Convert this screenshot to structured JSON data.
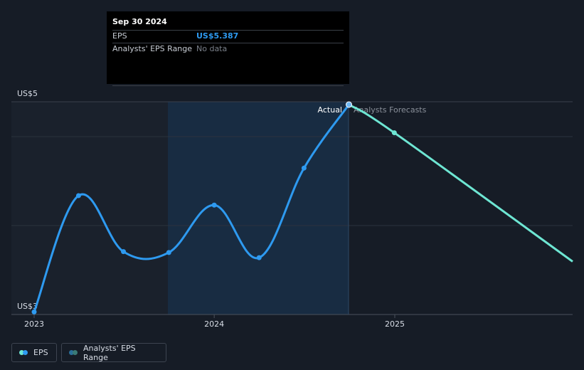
{
  "tooltip": {
    "date": "Sep 30 2024",
    "rows": [
      {
        "label": "EPS",
        "value": "US$5.387"
      },
      {
        "label": "Analysts' EPS Range",
        "value": "No data"
      }
    ]
  },
  "legend": {
    "eps_label": "EPS",
    "range_label": "Analysts' EPS Range"
  },
  "colors": {
    "actual": "#2e9af0",
    "forecast": "#6ee6d3",
    "range_dot_a": "#2a6f9a",
    "range_dot_b": "#3aa39a",
    "background": "#161c26",
    "highlight": "#182c42"
  },
  "chart_data": {
    "type": "line",
    "y_top_label": "US$5",
    "y_bottom_label": "US$3",
    "ylim": [
      2.95,
      5.42
    ],
    "x_ticks": [
      "2023",
      "2024",
      "2025"
    ],
    "section_labels": {
      "actual": "Actual",
      "forecast": "Analysts Forecasts"
    },
    "series": [
      {
        "name": "Actual",
        "points": [
          {
            "x": "2023-01-01",
            "y": 2.98
          },
          {
            "x": "2023-04-01",
            "y": 4.33
          },
          {
            "x": "2023-07-01",
            "y": 3.68
          },
          {
            "x": "2023-10-01",
            "y": 3.67
          },
          {
            "x": "2024-01-01",
            "y": 4.22
          },
          {
            "x": "2024-04-01",
            "y": 3.61
          },
          {
            "x": "2024-07-01",
            "y": 4.65
          },
          {
            "x": "2024-09-30",
            "y": 5.387
          }
        ]
      },
      {
        "name": "Analysts Forecasts",
        "points": [
          {
            "x": "2024-09-30",
            "y": 5.387
          },
          {
            "x": "2024-12-31",
            "y": 5.06
          },
          {
            "x": "2025-12-31",
            "y": 3.55
          }
        ]
      }
    ]
  }
}
